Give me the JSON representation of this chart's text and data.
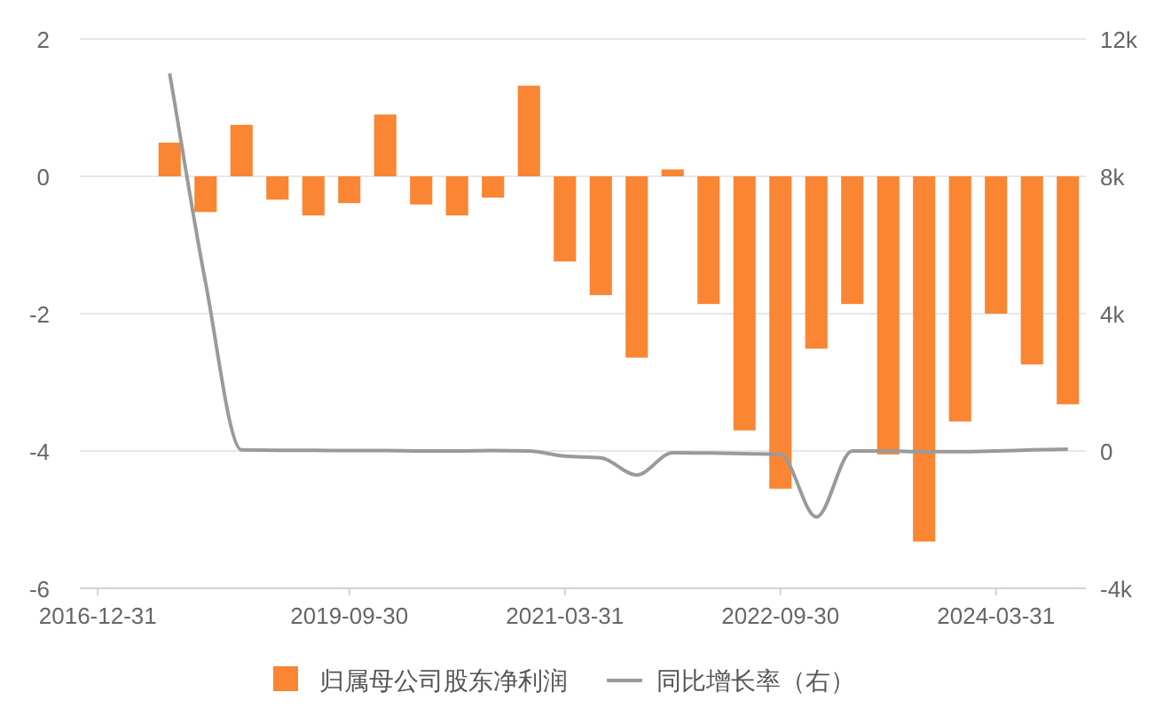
{
  "chart_data": {
    "type": "bar",
    "categories": [
      "2016-12-31",
      null,
      null,
      null,
      null,
      null,
      null,
      "2019-09-30",
      null,
      null,
      null,
      null,
      null,
      "2021-03-31",
      null,
      null,
      null,
      null,
      null,
      "2022-09-30",
      null,
      null,
      null,
      null,
      null,
      "2024-03-31",
      null,
      null
    ],
    "series": [
      {
        "name": "归属母公司股东净利润",
        "color": "#fa8532",
        "values": [
          null,
          null,
          0.49,
          -0.52,
          0.75,
          -0.34,
          -0.57,
          -0.39,
          0.9,
          -0.41,
          -0.57,
          -0.31,
          1.32,
          -1.24,
          -1.73,
          -2.64,
          0.1,
          -1.86,
          -3.7,
          -4.55,
          -2.51,
          -1.86,
          -4.05,
          -5.32,
          -3.57,
          -2.0,
          -2.74,
          -3.32
        ]
      },
      {
        "name": "同比增长率（右）",
        "type": "line",
        "axis": "y2",
        "color": "#9a9a9a",
        "values": [
          null,
          null,
          11000,
          4900,
          30,
          20,
          20,
          10,
          10,
          0,
          0,
          10,
          0,
          -150,
          -200,
          -700,
          -50,
          -60,
          -80,
          -100,
          -1920,
          0,
          0,
          -20,
          -20,
          0,
          30,
          50
        ]
      }
    ],
    "ylim": [
      -6,
      2
    ],
    "yticks": [
      -6,
      -4,
      -2,
      0,
      2
    ],
    "y2lim": [
      -4000,
      12000
    ],
    "y2ticks": [
      {
        "value": -4000,
        "label": "-4k"
      },
      {
        "value": 0,
        "label": "0"
      },
      {
        "value": 4000,
        "label": "4k"
      },
      {
        "value": 8000,
        "label": "8k"
      },
      {
        "value": 12000,
        "label": "12k"
      }
    ],
    "grid": "y",
    "legend": "bottom",
    "marker": "none"
  }
}
